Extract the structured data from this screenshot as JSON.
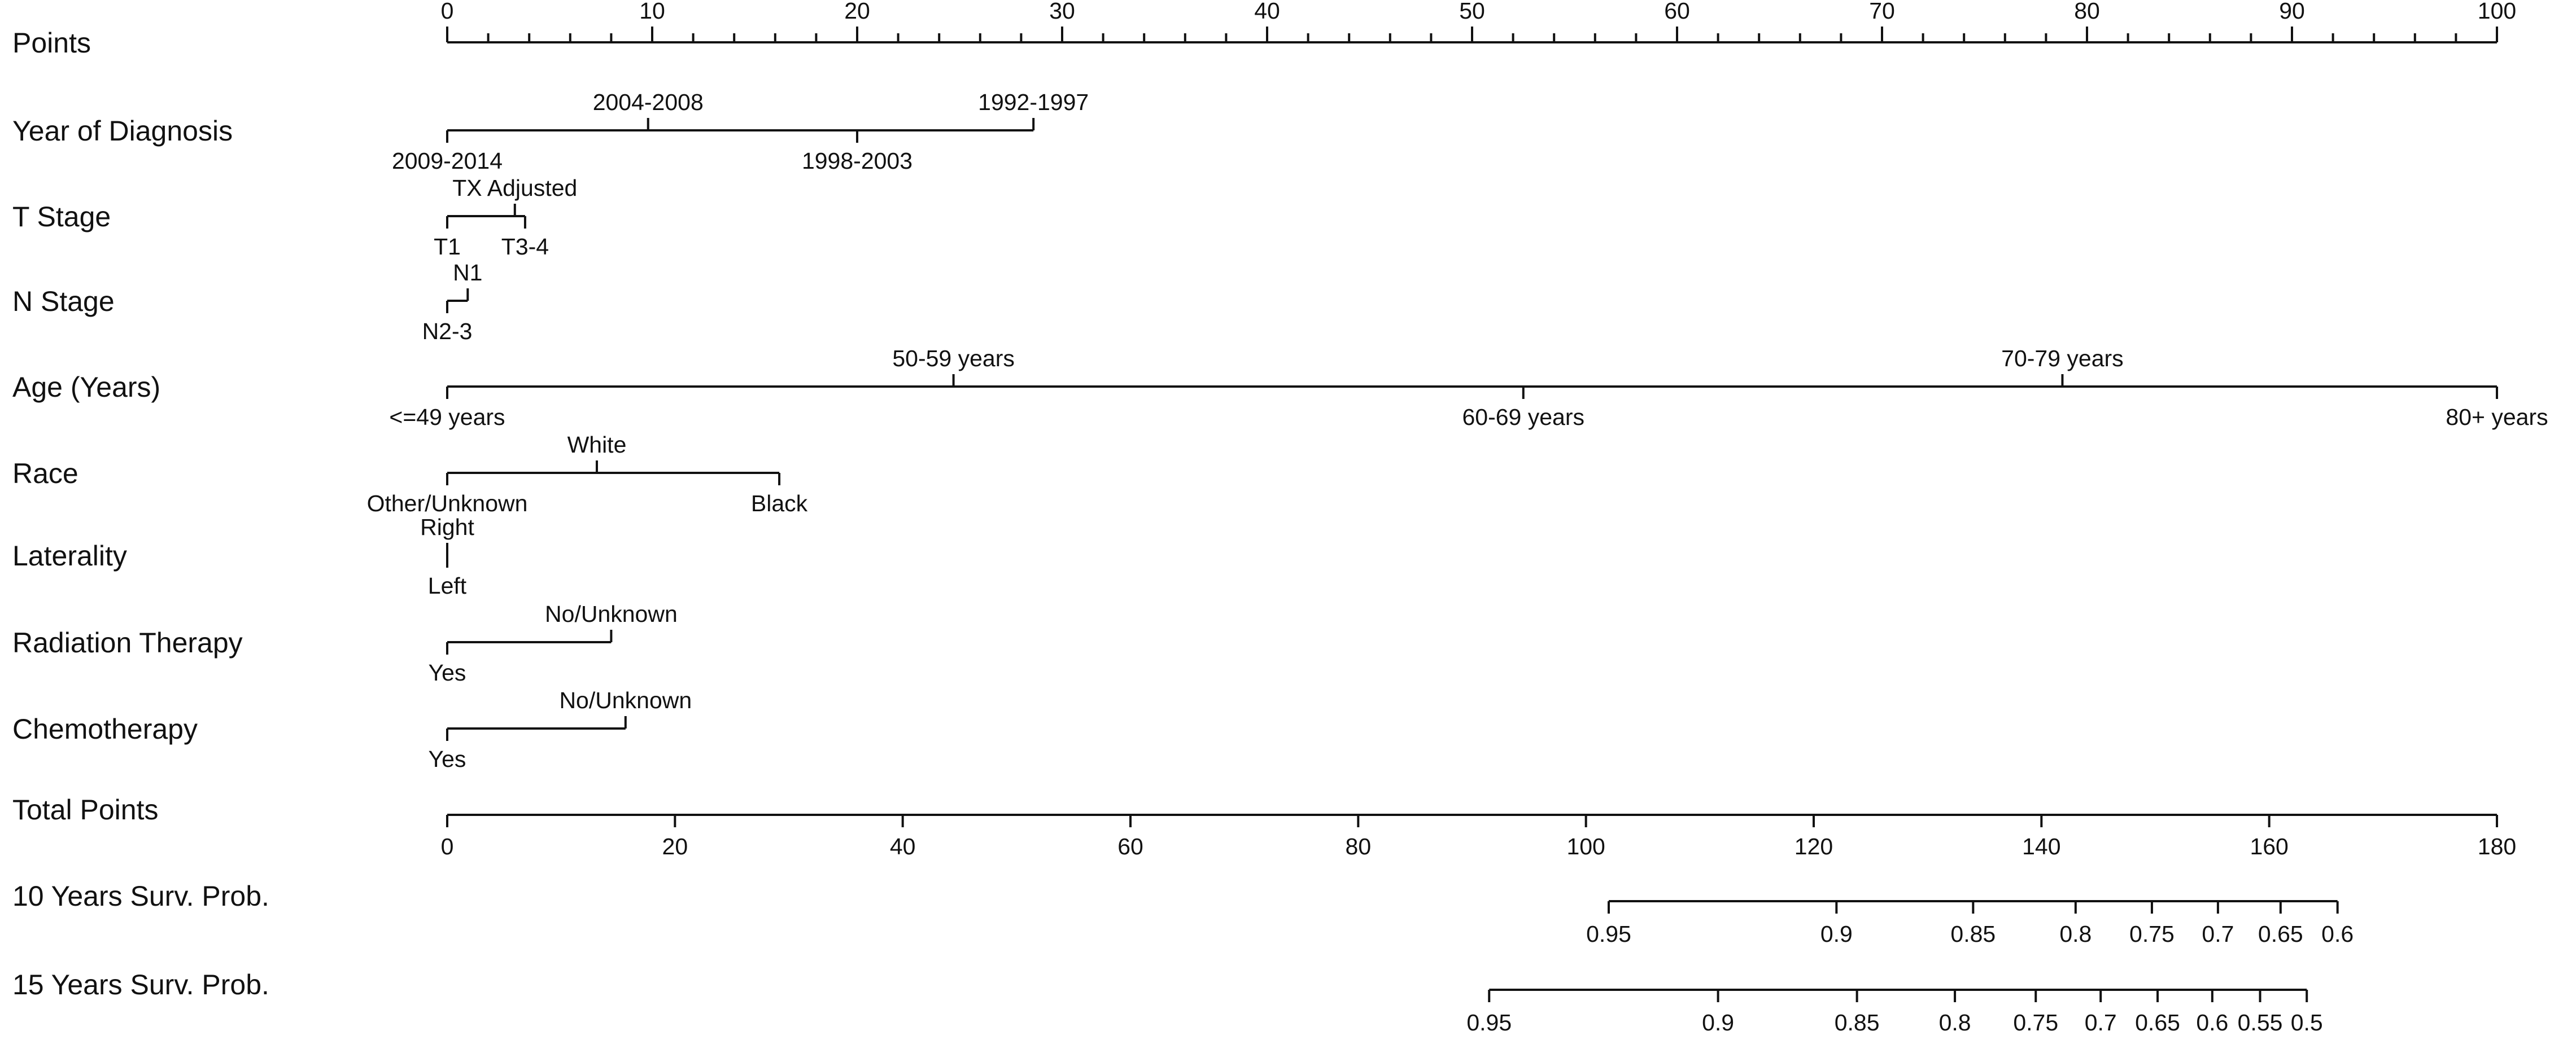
{
  "chart_data": {
    "type": "nomogram",
    "points_scale": {
      "label": "Points",
      "range": [
        0,
        100
      ],
      "ticks": [
        0,
        10,
        20,
        30,
        40,
        50,
        60,
        70,
        80,
        90,
        100
      ],
      "tick_labels": [
        "0",
        "10",
        "20",
        "30",
        "40",
        "50",
        "60",
        "70",
        "80",
        "90",
        "100"
      ],
      "minor_step": 2
    },
    "predictors": [
      {
        "label": "Year of Diagnosis",
        "levels": [
          {
            "name": "2009-2014",
            "points": 0,
            "side": "below"
          },
          {
            "name": "2004-2008",
            "points": 9.8,
            "side": "above"
          },
          {
            "name": "1998-2003",
            "points": 20.0,
            "side": "below"
          },
          {
            "name": "1992-1997",
            "points": 28.6,
            "side": "above"
          }
        ]
      },
      {
        "label": "T Stage",
        "levels": [
          {
            "name": "T1",
            "points": 0,
            "side": "below"
          },
          {
            "name": "TX Adjusted",
            "points": 3.3,
            "side": "above"
          },
          {
            "name": "T3-4",
            "points": 3.8,
            "side": "below"
          }
        ]
      },
      {
        "label": "N Stage",
        "levels": [
          {
            "name": "N2-3",
            "points": 0,
            "side": "below"
          },
          {
            "name": "N1",
            "points": 1.0,
            "side": "above"
          }
        ]
      },
      {
        "label": "Age (Years)",
        "levels": [
          {
            "name": "<=49 years",
            "points": 0,
            "side": "below"
          },
          {
            "name": "50-59 years",
            "points": 24.7,
            "side": "above"
          },
          {
            "name": "60-69 years",
            "points": 52.5,
            "side": "below"
          },
          {
            "name": "70-79 years",
            "points": 78.8,
            "side": "above"
          },
          {
            "name": "80+ years",
            "points": 100,
            "side": "below"
          }
        ]
      },
      {
        "label": "Race",
        "levels": [
          {
            "name": "Other/Unknown",
            "points": 0,
            "side": "below"
          },
          {
            "name": "White",
            "points": 7.3,
            "side": "above"
          },
          {
            "name": "Black",
            "points": 16.2,
            "side": "below"
          }
        ]
      },
      {
        "label": "Laterality",
        "levels": [
          {
            "name": "Left",
            "points": 0,
            "side": "below"
          },
          {
            "name": "Right",
            "points": 0,
            "side": "above"
          }
        ]
      },
      {
        "label": "Radiation Therapy",
        "levels": [
          {
            "name": "Yes",
            "points": 0,
            "side": "below"
          },
          {
            "name": "No/Unknown",
            "points": 8.0,
            "side": "above"
          }
        ]
      },
      {
        "label": "Chemotherapy",
        "levels": [
          {
            "name": "Yes",
            "points": 0,
            "side": "below"
          },
          {
            "name": "No/Unknown",
            "points": 8.7,
            "side": "above"
          }
        ]
      }
    ],
    "total_points": {
      "label": "Total Points",
      "range": [
        0,
        180
      ],
      "ticks": [
        0,
        20,
        40,
        60,
        80,
        100,
        120,
        140,
        160,
        180
      ],
      "tick_labels": [
        "0",
        "20",
        "40",
        "60",
        "80",
        "100",
        "120",
        "140",
        "160",
        "180"
      ]
    },
    "survival_scales": [
      {
        "label": "10 Years Surv. Prob.",
        "ticks": [
          {
            "label": "0.95",
            "total_points": 102.0
          },
          {
            "label": "0.9",
            "total_points": 122.0
          },
          {
            "label": "0.85",
            "total_points": 134.0
          },
          {
            "label": "0.8",
            "total_points": 143.0
          },
          {
            "label": "0.75",
            "total_points": 149.7
          },
          {
            "label": "0.7",
            "total_points": 155.5
          },
          {
            "label": "0.65",
            "total_points": 161.0
          },
          {
            "label": "0.6",
            "total_points": 166.0
          }
        ]
      },
      {
        "label": "15 Years Surv. Prob.",
        "ticks": [
          {
            "label": "0.95",
            "total_points": 91.5
          },
          {
            "label": "0.9",
            "total_points": 111.6
          },
          {
            "label": "0.85",
            "total_points": 123.8
          },
          {
            "label": "0.8",
            "total_points": 132.4
          },
          {
            "label": "0.75",
            "total_points": 139.5
          },
          {
            "label": "0.7",
            "total_points": 145.2
          },
          {
            "label": "0.65",
            "total_points": 150.2
          },
          {
            "label": "0.6",
            "total_points": 155.0
          },
          {
            "label": "0.55",
            "total_points": 159.2
          },
          {
            "label": "0.5",
            "total_points": 163.3
          }
        ]
      }
    ]
  }
}
